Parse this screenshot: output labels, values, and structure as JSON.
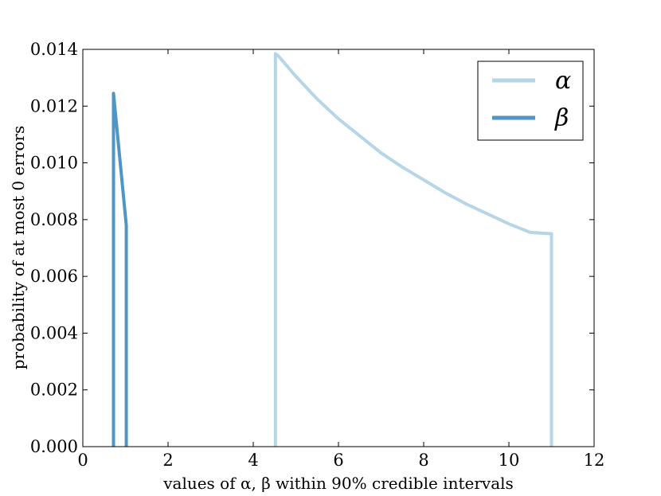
{
  "chart_data": {
    "type": "line",
    "title": "",
    "xlabel": "values of α, β within 90% credible intervals",
    "ylabel": "probability of at most 0 errors",
    "xlim": [
      0,
      12
    ],
    "ylim": [
      0,
      0.014
    ],
    "xticks": [
      "0",
      "2",
      "4",
      "6",
      "8",
      "10",
      "12"
    ],
    "yticks": [
      "0.000",
      "0.002",
      "0.004",
      "0.006",
      "0.008",
      "0.010",
      "0.012",
      "0.014"
    ],
    "legend_position": "top-right",
    "series": [
      {
        "name": "α",
        "color": "#b6d6e8",
        "x": [
          4.52,
          4.52,
          4.6,
          5.0,
          5.5,
          6.0,
          6.5,
          7.0,
          7.5,
          8.0,
          8.5,
          9.0,
          9.5,
          10.0,
          10.5,
          11.0,
          11.0
        ],
        "y": [
          0.0,
          0.01385,
          0.01375,
          0.01305,
          0.01225,
          0.01155,
          0.01095,
          0.01035,
          0.00985,
          0.0094,
          0.00895,
          0.00855,
          0.0082,
          0.00785,
          0.00755,
          0.0075,
          0.0
        ]
      },
      {
        "name": "β",
        "color": "#4e96c5",
        "x": [
          0.72,
          0.72,
          1.02,
          1.02
        ],
        "y": [
          0.0,
          0.01245,
          0.0078,
          0.0
        ]
      }
    ]
  }
}
